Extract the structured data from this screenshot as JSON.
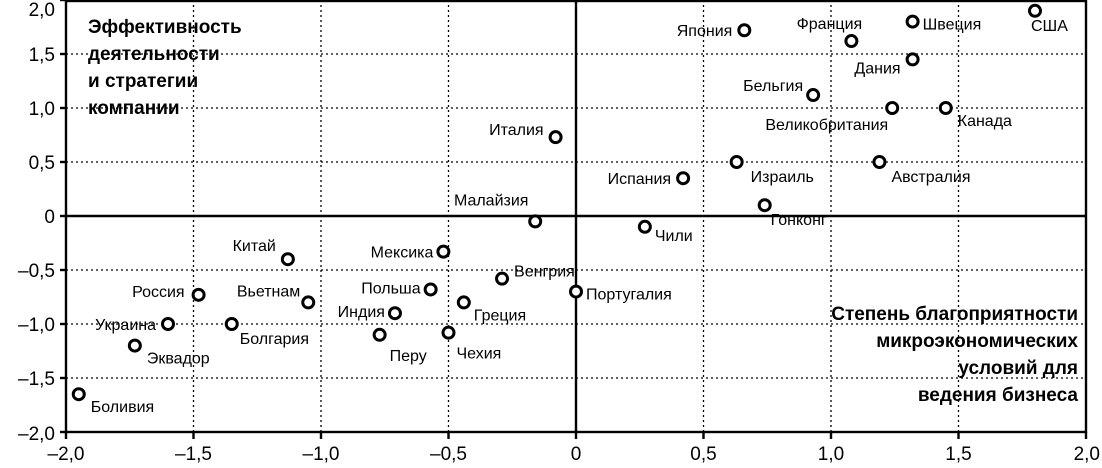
{
  "chart_data": {
    "type": "scatter",
    "title_lines": [
      "Эффективность",
      "деятельности",
      "и стратегии",
      "компании"
    ],
    "xlabel_lines": [
      "Степень благоприятности",
      "микроэкономических",
      "условий для",
      "ведения бизнеса"
    ],
    "xlim": [
      -2.0,
      2.0
    ],
    "ylim": [
      -2.0,
      2.0
    ],
    "xticks": [
      -2.0,
      -1.5,
      -1.0,
      -0.5,
      0,
      0.5,
      1.0,
      1.5,
      2.0
    ],
    "yticks": [
      -2.0,
      -1.5,
      -1.0,
      -0.5,
      0,
      0.5,
      1.0,
      1.5,
      2.0
    ],
    "xtick_labels": [
      "–2,0",
      "–1,5",
      "–1,0",
      "–0,5",
      "0",
      "0,5",
      "1,0",
      "1,5",
      "2,0"
    ],
    "ytick_labels": [
      "–2,0",
      "–1,5",
      "–1,0",
      "–0,5",
      "0",
      "0,5",
      "1,0",
      "1,5",
      "2,0"
    ],
    "grid": true,
    "points": [
      {
        "label": "США",
        "x": 1.8,
        "y": 1.9
      },
      {
        "label": "Швеция",
        "x": 1.32,
        "y": 1.8
      },
      {
        "label": "Япония",
        "x": 0.66,
        "y": 1.72
      },
      {
        "label": "Франция",
        "x": 1.08,
        "y": 1.62
      },
      {
        "label": "Дания",
        "x": 1.32,
        "y": 1.45
      },
      {
        "label": "Бельгия",
        "x": 0.93,
        "y": 1.12
      },
      {
        "label": "Великобритания",
        "x": 1.24,
        "y": 1.0
      },
      {
        "label": "Канада",
        "x": 1.45,
        "y": 1.0
      },
      {
        "label": "Италия",
        "x": -0.08,
        "y": 0.73
      },
      {
        "label": "Израиль",
        "x": 0.63,
        "y": 0.5
      },
      {
        "label": "Австралия",
        "x": 1.19,
        "y": 0.5
      },
      {
        "label": "Испания",
        "x": 0.42,
        "y": 0.35
      },
      {
        "label": "Гонконг",
        "x": 0.74,
        "y": 0.1
      },
      {
        "label": "Малайзия",
        "x": -0.16,
        "y": -0.05
      },
      {
        "label": "Чили",
        "x": 0.27,
        "y": -0.1
      },
      {
        "label": "Мексика",
        "x": -0.52,
        "y": -0.33
      },
      {
        "label": "Китай",
        "x": -1.13,
        "y": -0.4
      },
      {
        "label": "Венгрия",
        "x": -0.29,
        "y": -0.58
      },
      {
        "label": "Португалия",
        "x": 0.0,
        "y": -0.7
      },
      {
        "label": "Польша",
        "x": -0.57,
        "y": -0.68
      },
      {
        "label": "Россия",
        "x": -1.48,
        "y": -0.73
      },
      {
        "label": "Вьетнам",
        "x": -1.05,
        "y": -0.8
      },
      {
        "label": "Греция",
        "x": -0.44,
        "y": -0.8
      },
      {
        "label": "Индия",
        "x": -0.71,
        "y": -0.9
      },
      {
        "label": "Украина",
        "x": -1.6,
        "y": -1.0
      },
      {
        "label": "Болгария",
        "x": -1.35,
        "y": -1.0
      },
      {
        "label": "Перу",
        "x": -0.77,
        "y": -1.1
      },
      {
        "label": "Чехия",
        "x": -0.5,
        "y": -1.08
      },
      {
        "label": "Эквадор",
        "x": -1.73,
        "y": -1.2
      },
      {
        "label": "Боливия",
        "x": -1.95,
        "y": -1.65
      }
    ]
  }
}
